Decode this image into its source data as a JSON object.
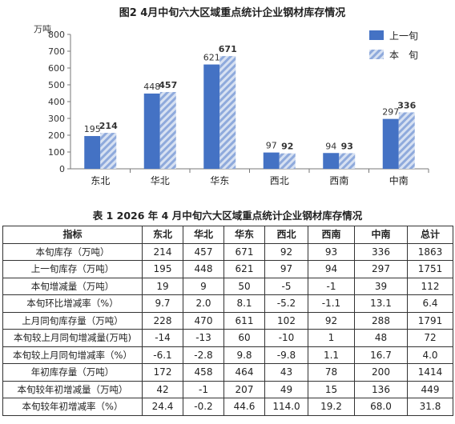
{
  "figure": {
    "title": "图2   4月中旬六大区域重点统计企业钢材库存情况"
  },
  "chart_data": {
    "type": "bar",
    "title": "图2   4月中旬六大区域重点统计企业钢材库存情况",
    "ylabel": "万吨",
    "xlabel": "",
    "ylim": [
      0,
      800
    ],
    "yticks": [
      0,
      100,
      200,
      300,
      400,
      500,
      600,
      700,
      800
    ],
    "grid": false,
    "legend": "top-right",
    "categories": [
      "东北",
      "华北",
      "华东",
      "西北",
      "西南",
      "中南"
    ],
    "series": [
      {
        "name": "上一旬",
        "values": [
          195,
          448,
          621,
          97,
          94,
          297
        ],
        "color": "#4472c4",
        "pattern": "solid"
      },
      {
        "name": "本　旬",
        "values": [
          214,
          457,
          671,
          92,
          93,
          336
        ],
        "color": "#8faadc",
        "pattern": "hatched"
      }
    ]
  },
  "table": {
    "title": "表 1   2026 年 4 月中旬六大区域重点统计企业钢材库存情况",
    "headers": [
      "指标",
      "东北",
      "华北",
      "华东",
      "西北",
      "西南",
      "中南",
      "总计"
    ],
    "rows": [
      [
        "本旬库存（万吨）",
        "214",
        "457",
        "671",
        "92",
        "93",
        "336",
        "1863"
      ],
      [
        "上一旬库存（万吨）",
        "195",
        "448",
        "621",
        "97",
        "94",
        "297",
        "1751"
      ],
      [
        "本旬增减量（万吨）",
        "19",
        "9",
        "50",
        "-5",
        "-1",
        "39",
        "112"
      ],
      [
        "本旬环比增减率（%）",
        "9.7",
        "2.0",
        "8.1",
        "-5.2",
        "-1.1",
        "13.1",
        "6.4"
      ],
      [
        "上月同旬库存量（万吨）",
        "228",
        "470",
        "611",
        "102",
        "92",
        "288",
        "1791"
      ],
      [
        "本旬较上月同旬增减量(万吨)",
        "-14",
        "-13",
        "60",
        "-10",
        "1",
        "48",
        "72"
      ],
      [
        "本旬较上月同旬增减率（%）",
        "-6.1",
        "-2.8",
        "9.8",
        "-9.8",
        "1.1",
        "16.7",
        "4.0"
      ],
      [
        "年初库存量（万吨）",
        "172",
        "458",
        "464",
        "43",
        "78",
        "200",
        "1414"
      ],
      [
        "本旬较年初增减量（万吨）",
        "42",
        "-1",
        "207",
        "49",
        "15",
        "136",
        "449"
      ],
      [
        "本旬较年初增减率（%）",
        "24.4",
        "-0.2",
        "44.6",
        "114.0",
        "19.2",
        "68.0",
        "31.8"
      ]
    ]
  }
}
